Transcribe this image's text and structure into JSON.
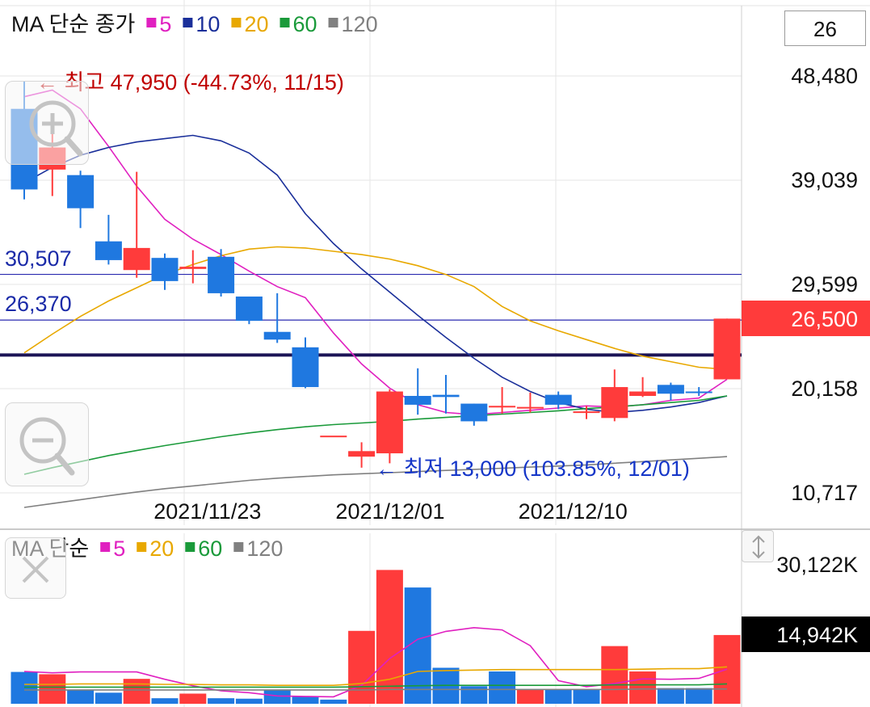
{
  "price_legend": {
    "title": "MA 단순 종가",
    "items": [
      {
        "label": "5",
        "color": "#e020c0"
      },
      {
        "label": "10",
        "color": "#1a2f9a"
      },
      {
        "label": "20",
        "color": "#e8a800"
      },
      {
        "label": "60",
        "color": "#1a9a3a"
      },
      {
        "label": "120",
        "color": "#808080"
      }
    ]
  },
  "volume_legend": {
    "title": "MA 단순",
    "items": [
      {
        "label": "5",
        "color": "#e020c0"
      },
      {
        "label": "20",
        "color": "#e8a800"
      },
      {
        "label": "60",
        "color": "#1a9a3a"
      },
      {
        "label": "120",
        "color": "#808080"
      }
    ]
  },
  "count_box": "26",
  "annotations": {
    "high": "← 최고 47,950 (-44.73%, 11/15)",
    "low": "← 최저 13,000 (103.85%, 12/01)",
    "level_upper": "30,507",
    "level_lower": "26,370"
  },
  "chart_data": [
    {
      "type": "candlestick",
      "y_ticks": [
        "48,480",
        "39,039",
        "29,599",
        "20,158",
        "10,717"
      ],
      "y_tick_values": [
        48480,
        39039,
        29599,
        20158,
        10717
      ],
      "ylim": [
        8000,
        50000
      ],
      "x_ticks": [
        {
          "label": "2021/11/23",
          "index": 6
        },
        {
          "label": "2021/12/01",
          "index": 12.5
        },
        {
          "label": "2021/12/10",
          "index": 19
        }
      ],
      "current_price": {
        "label": "26,500",
        "value": 26500,
        "color": "#ff3b3b"
      },
      "horizontal_lines": [
        {
          "value": 30507,
          "color": "#2a2ab0"
        },
        {
          "value": 26370,
          "color": "#2a2ab0"
        },
        {
          "value": 23200,
          "color": "#1c1456"
        }
      ],
      "colors": {
        "up": "#ff3b3b",
        "down": "#1f78e0"
      },
      "candles": [
        {
          "o": 45500,
          "h": 48000,
          "l": 37300,
          "c": 38200
        },
        {
          "o": 40000,
          "h": 44400,
          "l": 37600,
          "c": 42000
        },
        {
          "o": 39500,
          "h": 39900,
          "l": 34700,
          "c": 36500
        },
        {
          "o": 33500,
          "h": 35900,
          "l": 31400,
          "c": 31800
        },
        {
          "o": 30900,
          "h": 39800,
          "l": 30200,
          "c": 32900
        },
        {
          "o": 32000,
          "h": 32400,
          "l": 29100,
          "c": 29900
        },
        {
          "o": 31000,
          "h": 32700,
          "l": 29700,
          "c": 31200
        },
        {
          "o": 32100,
          "h": 32800,
          "l": 28500,
          "c": 28800
        },
        {
          "o": 28500,
          "h": 28500,
          "l": 26000,
          "c": 26300
        },
        {
          "o": 25300,
          "h": 28800,
          "l": 24300,
          "c": 24600
        },
        {
          "o": 23900,
          "h": 24800,
          "l": 20200,
          "c": 20300
        },
        {
          "o": 15900,
          "h": 15900,
          "l": 15900,
          "c": 15900
        },
        {
          "o": 14000,
          "h": 15300,
          "l": 13000,
          "c": 14500
        },
        {
          "o": 14300,
          "h": 20100,
          "l": 13400,
          "c": 19900
        },
        {
          "o": 19500,
          "h": 22000,
          "l": 17800,
          "c": 18700
        },
        {
          "o": 19600,
          "h": 21400,
          "l": 17900,
          "c": 19400
        },
        {
          "o": 18800,
          "h": 18800,
          "l": 16800,
          "c": 17200
        },
        {
          "o": 18500,
          "h": 20300,
          "l": 17900,
          "c": 18600
        },
        {
          "o": 18400,
          "h": 19800,
          "l": 18000,
          "c": 18500
        },
        {
          "o": 19600,
          "h": 19900,
          "l": 18300,
          "c": 18700
        },
        {
          "o": 18000,
          "h": 18600,
          "l": 17400,
          "c": 18100
        },
        {
          "o": 17500,
          "h": 21900,
          "l": 17200,
          "c": 20300
        },
        {
          "o": 19500,
          "h": 21200,
          "l": 19400,
          "c": 19900
        },
        {
          "o": 20500,
          "h": 20700,
          "l": 19100,
          "c": 19700
        },
        {
          "o": 19900,
          "h": 20300,
          "l": 19500,
          "c": 19800
        },
        {
          "o": 21000,
          "h": 26500,
          "l": 21000,
          "c": 26500
        }
      ],
      "ma": [
        {
          "period": "5",
          "color": "#e020c0",
          "values": [
            46600,
            47200,
            45500,
            42100,
            38500,
            35500,
            33700,
            32300,
            30800,
            29400,
            28400,
            25200,
            22400,
            20200,
            18700,
            18000,
            17800,
            18000,
            18200,
            18400,
            18600,
            18500,
            18700,
            19100,
            19300,
            21000
          ]
        },
        {
          "period": "10",
          "color": "#1a2f9a",
          "values": [
            38800,
            40200,
            41300,
            42000,
            42500,
            42800,
            43100,
            42600,
            41500,
            39500,
            36000,
            33300,
            31000,
            28900,
            26800,
            24800,
            22900,
            21200,
            19900,
            18900,
            18300,
            18000,
            18200,
            18500,
            18900,
            19500
          ]
        },
        {
          "period": "20",
          "color": "#e8a800",
          "values": [
            23400,
            25100,
            26700,
            28100,
            29300,
            30500,
            31400,
            32200,
            32800,
            33000,
            32900,
            32600,
            32300,
            31900,
            31300,
            30500,
            29400,
            27600,
            26300,
            25400,
            24600,
            23800,
            23100,
            22600,
            22100,
            21900
          ]
        },
        {
          "period": "60",
          "color": "#1a9a3a",
          "values": [
            12400,
            13000,
            13550,
            14100,
            14550,
            15000,
            15400,
            15800,
            16150,
            16450,
            16700,
            16900,
            17050,
            17200,
            17400,
            17550,
            17700,
            17850,
            18000,
            18150,
            18350,
            18500,
            18700,
            18900,
            19100,
            19500
          ]
        },
        {
          "period": "120",
          "color": "#808080",
          "values": [
            9400,
            9750,
            10100,
            10450,
            10800,
            11100,
            11350,
            11600,
            11850,
            12050,
            12200,
            12350,
            12450,
            12550,
            12650,
            12750,
            12850,
            12950,
            13050,
            13150,
            13250,
            13400,
            13550,
            13700,
            13850,
            14000
          ]
        }
      ]
    },
    {
      "type": "bar",
      "y_ticks": [
        "30,122K"
      ],
      "ylim": [
        0,
        30122
      ],
      "current_volume": {
        "label": "14,942K",
        "value": 14942,
        "color": "#000000"
      },
      "volumes": [
        {
          "v": 6900,
          "dir": "down"
        },
        {
          "v": 6400,
          "dir": "up"
        },
        {
          "v": 3000,
          "dir": "down"
        },
        {
          "v": 2400,
          "dir": "down"
        },
        {
          "v": 5400,
          "dir": "up"
        },
        {
          "v": 1200,
          "dir": "down"
        },
        {
          "v": 2200,
          "dir": "up"
        },
        {
          "v": 1200,
          "dir": "down"
        },
        {
          "v": 1100,
          "dir": "down"
        },
        {
          "v": 2900,
          "dir": "down"
        },
        {
          "v": 1500,
          "dir": "down"
        },
        {
          "v": 900,
          "dir": "down"
        },
        {
          "v": 15800,
          "dir": "up"
        },
        {
          "v": 29000,
          "dir": "up"
        },
        {
          "v": 25200,
          "dir": "down"
        },
        {
          "v": 7800,
          "dir": "down"
        },
        {
          "v": 3800,
          "dir": "down"
        },
        {
          "v": 7000,
          "dir": "down"
        },
        {
          "v": 3200,
          "dir": "up"
        },
        {
          "v": 3200,
          "dir": "down"
        },
        {
          "v": 3200,
          "dir": "down"
        },
        {
          "v": 12500,
          "dir": "up"
        },
        {
          "v": 7000,
          "dir": "up"
        },
        {
          "v": 3400,
          "dir": "down"
        },
        {
          "v": 3400,
          "dir": "down"
        },
        {
          "v": 14900,
          "dir": "up"
        }
      ],
      "ma": [
        {
          "period": "5",
          "color": "#e020c0",
          "values": [
            7000,
            6700,
            6900,
            6900,
            6900,
            5300,
            3900,
            2800,
            2400,
            1700,
            1600,
            1500,
            4000,
            9800,
            14000,
            15700,
            16500,
            16000,
            12600,
            5000,
            3700,
            4400,
            5400,
            5300,
            5500,
            7500
          ]
        },
        {
          "period": "20",
          "color": "#e8a800",
          "values": [
            4200,
            4200,
            4300,
            4300,
            4300,
            4200,
            4200,
            4100,
            4100,
            4000,
            4000,
            4000,
            4400,
            5300,
            7000,
            7200,
            7300,
            7400,
            7400,
            7400,
            7400,
            7400,
            7500,
            7600,
            7600,
            8000
          ]
        },
        {
          "period": "60",
          "color": "#1a9a3a",
          "values": [
            3600,
            3600,
            3600,
            3600,
            3600,
            3600,
            3600,
            3600,
            3600,
            3600,
            3600,
            3600,
            3700,
            3800,
            3900,
            4000,
            4000,
            4000,
            4000,
            4000,
            4000,
            4100,
            4100,
            4100,
            4100,
            4300
          ]
        },
        {
          "period": "120",
          "color": "#808080",
          "values": [
            3000,
            3000,
            3000,
            3000,
            3000,
            3000,
            3000,
            3000,
            3000,
            3000,
            3000,
            3000,
            3000,
            3100,
            3100,
            3100,
            3100,
            3100,
            3100,
            3100,
            3100,
            3100,
            3200,
            3200,
            3200,
            3200
          ]
        }
      ]
    }
  ]
}
